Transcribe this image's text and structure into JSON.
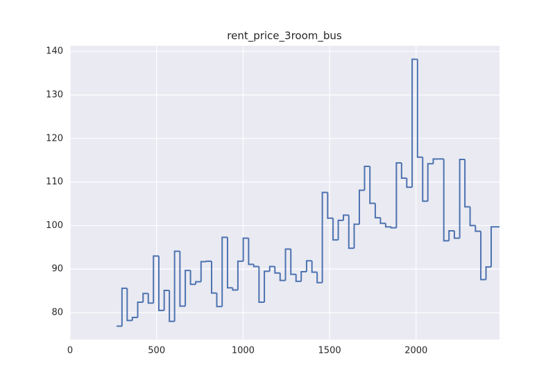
{
  "chart_data": {
    "type": "step",
    "title": "rent_price_3room_bus",
    "x": [
      269,
      300,
      330,
      360,
      391,
      422,
      452,
      482,
      513,
      544,
      574,
      604,
      635,
      666,
      696,
      726,
      757,
      788,
      818,
      848,
      879,
      910,
      940,
      970,
      1001,
      1032,
      1062,
      1092,
      1123,
      1154,
      1184,
      1214,
      1245,
      1276,
      1306,
      1336,
      1367,
      1398,
      1428,
      1458,
      1489,
      1520,
      1550,
      1580,
      1611,
      1642,
      1672,
      1702,
      1733,
      1764,
      1794,
      1824,
      1855,
      1886,
      1916,
      1946,
      1977,
      2008,
      2038,
      2068,
      2099,
      2130,
      2160,
      2190,
      2221,
      2252,
      2282,
      2312,
      2343,
      2374,
      2404,
      2434
    ],
    "series": [
      {
        "color": "#4c72b0",
        "values": [
          76.9,
          85.6,
          78.2,
          78.9,
          82.4,
          84.4,
          82.2,
          93.0,
          80.5,
          85.1,
          78.0,
          94.1,
          81.5,
          89.7,
          86.5,
          87.1,
          91.7,
          91.8,
          84.5,
          81.4,
          97.3,
          85.7,
          85.2,
          91.8,
          97.1,
          91.1,
          90.6,
          82.4,
          89.5,
          90.6,
          89.1,
          87.4,
          94.6,
          88.8,
          87.2,
          89.4,
          91.9,
          89.3,
          86.9,
          107.6,
          101.7,
          96.7,
          101.2,
          102.4,
          94.8,
          100.3,
          108.1,
          113.6,
          105.1,
          101.8,
          100.5,
          99.7,
          99.5,
          114.4,
          110.9,
          108.8,
          138.2,
          115.7,
          105.6,
          114.2,
          115.3,
          115.3,
          96.5,
          98.8,
          97.1,
          115.2,
          104.3,
          100.0,
          98.7,
          87.6,
          90.5,
          99.7
        ]
      }
    ],
    "xlim": [
      0,
      2482
    ],
    "ylim": [
      73.8,
      141.3
    ],
    "xticks": [
      0,
      500,
      1000,
      1500,
      2000
    ],
    "yticks": [
      80,
      90,
      100,
      110,
      120,
      130,
      140
    ],
    "grid": true
  }
}
